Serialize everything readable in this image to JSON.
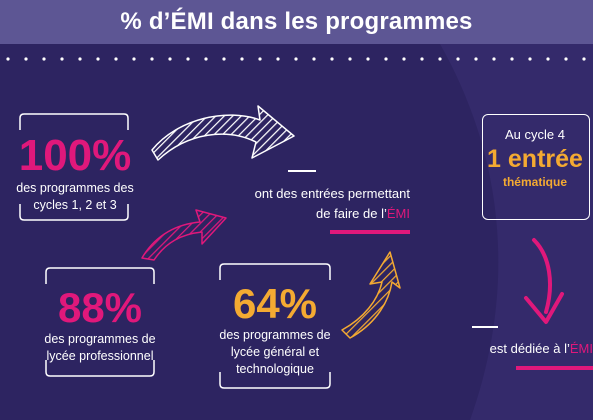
{
  "title": "% d’ÉMI dans les programmes",
  "stats": {
    "cycles": {
      "value": "100%",
      "caption_line1": "des programmes des",
      "caption_line2": "cycles 1, 2 et 3"
    },
    "pro": {
      "value": "88%",
      "caption_line1": "des programmes de",
      "caption_line2": "lycée professionnel"
    },
    "gt": {
      "value": "64%",
      "caption_line1": "des programmes de",
      "caption_line2": "lycée général et",
      "caption_line3": "technologique"
    }
  },
  "middle_text": {
    "line1": "ont des entrées permettant",
    "line2_prefix": "de faire de l’",
    "line2_accent": "ÉMI"
  },
  "cycle4": {
    "label": "Au cycle 4",
    "value": "1 entrée",
    "sub": "thématique"
  },
  "right_text": {
    "prefix": "est dédiée à l’",
    "accent": "ÉMI"
  },
  "colors": {
    "background": "#2d2461",
    "title_bar": "#5d5694",
    "pink": "#e0187b",
    "yellow": "#f4aa32",
    "white": "#ffffff"
  },
  "icons": [
    "arrow-white-icon",
    "arrow-pink-icon",
    "arrow-yellow-icon",
    "arrow-pink-down-icon"
  ]
}
